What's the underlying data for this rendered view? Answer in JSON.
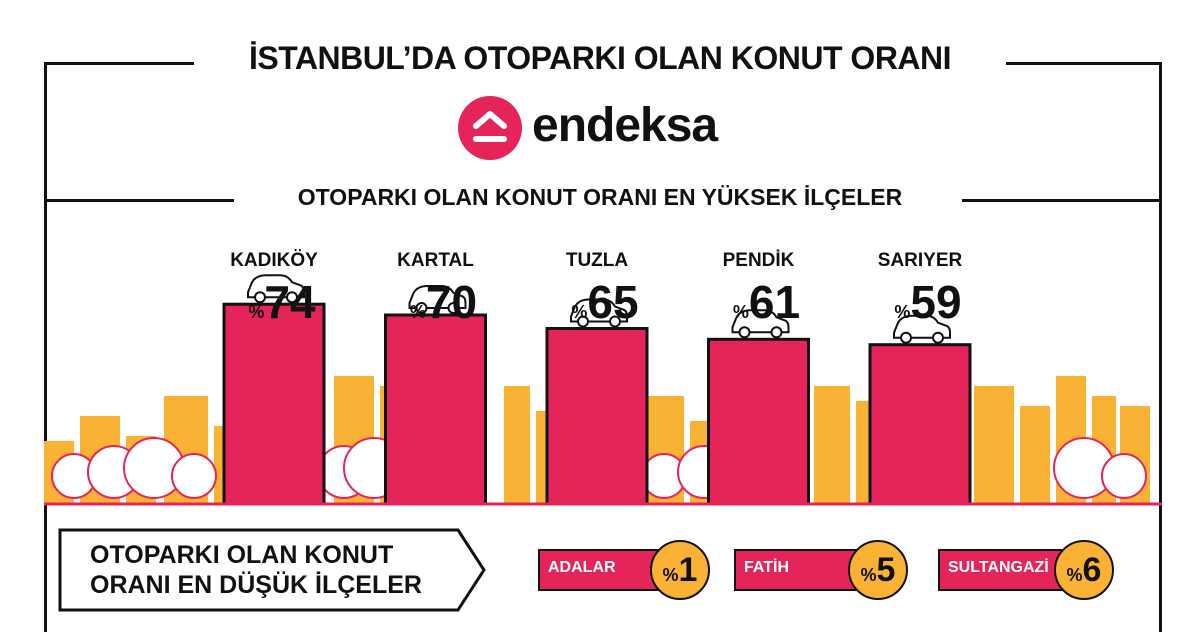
{
  "title": "İSTANBUL’DA OTOPARKI OLAN KONUT ORANI",
  "brand": {
    "name": "endeksa",
    "color": "#e5245a",
    "icon": "house-roof-icon"
  },
  "subtitle": "OTOPARKI OLAN KONUT ORANI EN YÜKSEK İLÇELER",
  "colors": {
    "bar": "#e5245a",
    "skyline": "#f9b233",
    "tree_outline": "#e5245a",
    "stroke": "#111111"
  },
  "chart_data": {
    "type": "bar",
    "title": "OTOPARKI OLAN KONUT ORANI EN YÜKSEK İLÇELER",
    "categories": [
      "KADIKÖY",
      "KARTAL",
      "TUZLA",
      "PENDİK",
      "SARIYER"
    ],
    "values": [
      74,
      70,
      65,
      61,
      59
    ],
    "value_prefix": "%",
    "xlabel": "",
    "ylabel": "",
    "ylim": [
      0,
      80
    ],
    "grid": false,
    "legend": "none",
    "bar_decoration": "car-icon"
  },
  "lowest": {
    "heading_line1": "OTOPARKI OLAN KONUT",
    "heading_line2": "ORANI EN DÜŞÜK İLÇELER",
    "items": [
      {
        "name": "ADALAR",
        "prefix": "%",
        "value": "1"
      },
      {
        "name": "FATİH",
        "prefix": "%",
        "value": "5"
      },
      {
        "name": "SULTANGAZİ",
        "prefix": "%",
        "value": "6"
      }
    ]
  }
}
